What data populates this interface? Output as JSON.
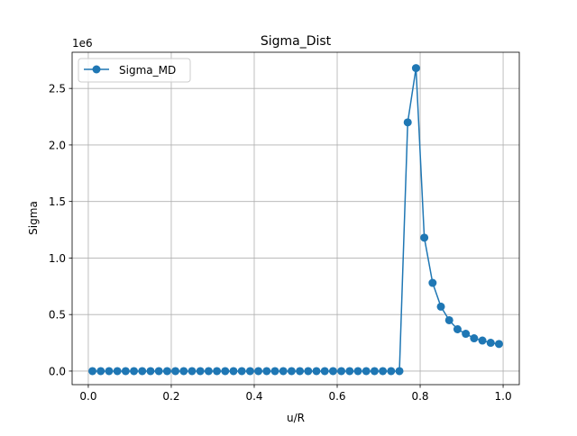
{
  "chart_data": {
    "type": "line",
    "title": "Sigma_Dist",
    "xlabel": "u/R",
    "ylabel": "Sigma",
    "offset_label": "1e6",
    "xlim": [
      -0.039,
      1.039
    ],
    "ylim": [
      -0.12,
      2.82
    ],
    "xticks": [
      0.0,
      0.2,
      0.4,
      0.6,
      0.8,
      1.0
    ],
    "xtick_labels": [
      "0.0",
      "0.2",
      "0.4",
      "0.6",
      "0.8",
      "1.0"
    ],
    "yticks": [
      0.0,
      0.5,
      1.0,
      1.5,
      2.0,
      2.5
    ],
    "ytick_labels": [
      "0.0",
      "0.5",
      "1.0",
      "1.5",
      "2.0",
      "2.5"
    ],
    "grid": true,
    "legend_position": "upper-left",
    "series": [
      {
        "name": "Sigma_MD",
        "color": "#1f77b4",
        "marker": "circle",
        "x": [
          0.01,
          0.03,
          0.05,
          0.07,
          0.09,
          0.11,
          0.13,
          0.15,
          0.17,
          0.19,
          0.21,
          0.23,
          0.25,
          0.27,
          0.29,
          0.31,
          0.33,
          0.35,
          0.37,
          0.39,
          0.41,
          0.43,
          0.45,
          0.47,
          0.49,
          0.51,
          0.53,
          0.55,
          0.57,
          0.59,
          0.61,
          0.63,
          0.65,
          0.67,
          0.69,
          0.71,
          0.73,
          0.75,
          0.77,
          0.79,
          0.81,
          0.83,
          0.85,
          0.87,
          0.89,
          0.91,
          0.93,
          0.95,
          0.97,
          0.99
        ],
        "y": [
          0,
          0,
          0,
          0,
          0,
          0,
          0,
          0,
          0,
          0,
          0,
          0,
          0,
          0,
          0,
          0,
          0,
          0,
          0,
          0,
          0,
          0,
          0,
          0,
          0,
          0,
          0,
          0,
          0,
          0,
          0,
          0,
          0,
          0,
          0,
          0,
          0,
          0,
          2.2,
          2.68,
          1.18,
          0.78,
          0.57,
          0.45,
          0.37,
          0.33,
          0.29,
          0.27,
          0.25,
          0.24
        ]
      }
    ]
  }
}
